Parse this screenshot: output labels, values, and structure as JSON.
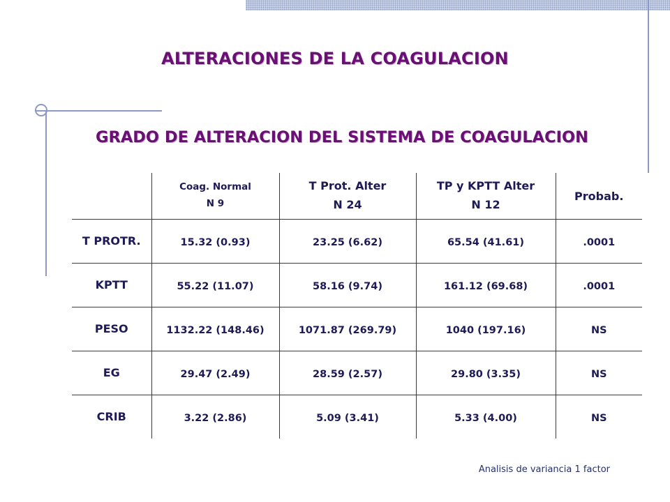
{
  "title": "ALTERACIONES DE LA COAGULACION",
  "subtitle": "GRADO DE ALTERACION DEL SISTEMA DE COAGULACION",
  "table": {
    "columns": [
      {
        "line1": "Coag. Normal",
        "line2": "N 9"
      },
      {
        "line1": "T Prot. Alter",
        "line2": "N 24"
      },
      {
        "line1": "TP y KPTT Alter",
        "line2": "N 12"
      },
      {
        "line1": "Probab.",
        "line2": ""
      }
    ],
    "rows": [
      {
        "label": "T PROTR.",
        "values": [
          "15.32 (0.93)",
          "23.25 (6.62)",
          "65.54 (41.61)",
          ".0001"
        ]
      },
      {
        "label": "KPTT",
        "values": [
          "55.22 (11.07)",
          "58.16 (9.74)",
          "161.12 (69.68)",
          ".0001"
        ]
      },
      {
        "label": "PESO",
        "values": [
          "1132.22 (148.46)",
          "1071.87 (269.79)",
          "1040 (197.16)",
          "NS"
        ]
      },
      {
        "label": "EG",
        "values": [
          "29.47 (2.49)",
          "28.59 (2.57)",
          "29.80 (3.35)",
          "NS"
        ]
      },
      {
        "label": "CRIB",
        "values": [
          "3.22 (2.86)",
          "5.09 (3.41)",
          "5.33 (4.00)",
          "NS"
        ]
      }
    ]
  },
  "footnote": "Analisis de variancia 1 factor"
}
